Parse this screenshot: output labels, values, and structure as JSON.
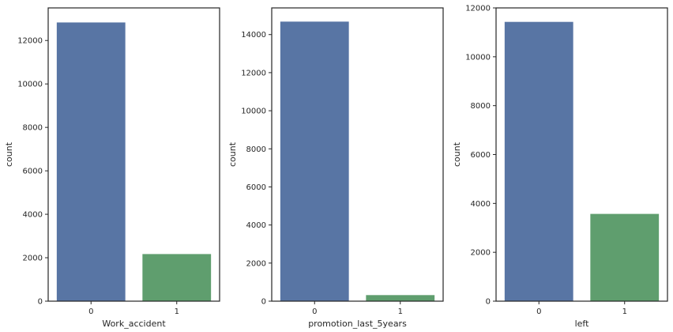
{
  "chart_data": [
    {
      "type": "bar",
      "categories": [
        "0",
        "1"
      ],
      "values": [
        12830,
        2169
      ],
      "xlabel": "Work_accident",
      "ylabel": "count",
      "ylim": [
        0,
        13500
      ],
      "yticks": [
        0,
        2000,
        4000,
        6000,
        8000,
        10000,
        12000
      ],
      "grid": false,
      "colors": [
        "#5875a4",
        "#5f9e6e"
      ]
    },
    {
      "type": "bar",
      "categories": [
        "0",
        "1"
      ],
      "values": [
        14680,
        319
      ],
      "xlabel": "promotion_last_5years",
      "ylabel": "count",
      "ylim": [
        0,
        15400
      ],
      "yticks": [
        0,
        2000,
        4000,
        6000,
        8000,
        10000,
        12000,
        14000
      ],
      "grid": false,
      "colors": [
        "#5875a4",
        "#5f9e6e"
      ]
    },
    {
      "type": "bar",
      "categories": [
        "0",
        "1"
      ],
      "values": [
        11428,
        3571
      ],
      "xlabel": "left",
      "ylabel": "count",
      "ylim": [
        0,
        12000
      ],
      "yticks": [
        0,
        2000,
        4000,
        6000,
        8000,
        10000,
        12000
      ],
      "grid": false,
      "colors": [
        "#5875a4",
        "#5f9e6e"
      ]
    }
  ]
}
